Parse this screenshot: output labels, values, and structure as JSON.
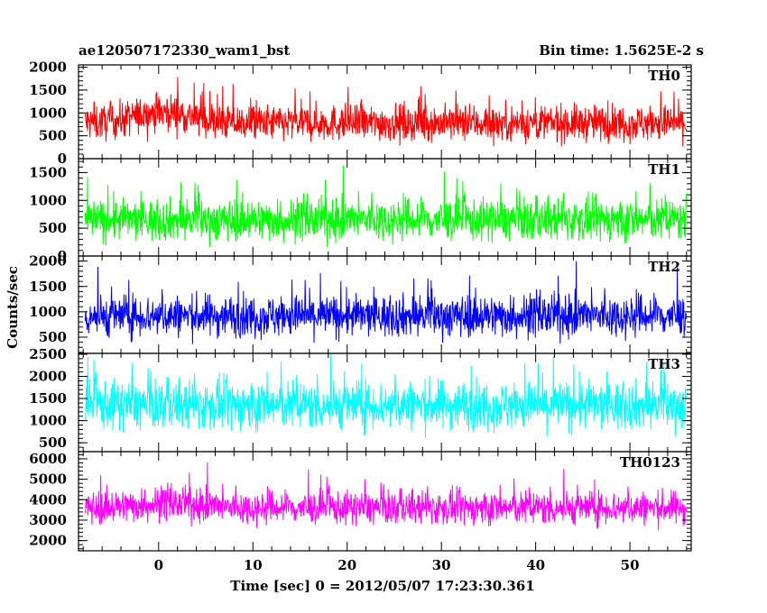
{
  "header": {
    "title": "ae120507172330_wam1_bst",
    "bin_time": "Bin time: 1.5625E-2 s"
  },
  "axes": {
    "ylabel": "Counts/sec",
    "xlabel": "Time [sec] 0 = 2012/05/07 17:23:30.361"
  },
  "chart_data": {
    "type": "line",
    "xlim": [
      -8.5,
      56.5
    ],
    "x_ticks": [
      0,
      10,
      20,
      30,
      40,
      50
    ],
    "x_tick_labels": [
      "0",
      "10",
      "20",
      "30",
      "40",
      "50"
    ],
    "x_data_range": [
      -7.8,
      56
    ],
    "bin_time": 0.015625,
    "panels": [
      {
        "name": "TH0",
        "color": "#ff0000",
        "ylim": [
          0,
          2050
        ],
        "y_ticks": [
          0,
          500,
          1000,
          1500,
          2000
        ],
        "y_tick_labels": [
          "0",
          "500",
          "1000",
          "1500",
          "2000"
        ],
        "baseline": 780,
        "spread": 320,
        "bursts": [
          {
            "x": 0.5,
            "amp": 250,
            "width": 4
          }
        ]
      },
      {
        "name": "TH1",
        "color": "#00ff00",
        "ylim": [
          0,
          1750
        ],
        "y_ticks": [
          0,
          500,
          1000,
          1500
        ],
        "y_tick_labels": [
          "0",
          "500",
          "1000",
          "1500"
        ],
        "baseline": 650,
        "spread": 300,
        "bursts": []
      },
      {
        "name": "TH2",
        "color": "#0000ff",
        "ylim": [
          180,
          2100
        ],
        "y_ticks": [
          500,
          1000,
          1500,
          2000
        ],
        "y_tick_labels": [
          "500",
          "1000",
          "1500",
          "2000"
        ],
        "baseline": 920,
        "spread": 330,
        "bursts": []
      },
      {
        "name": "TH3",
        "color": "#00ffff",
        "ylim": [
          300,
          2520
        ],
        "y_ticks": [
          500,
          1000,
          1500,
          2000,
          2500
        ],
        "y_tick_labels": [
          "500",
          "1000",
          "1500",
          "2000",
          "2500"
        ],
        "baseline": 1350,
        "spread": 440,
        "bursts": []
      },
      {
        "name": "TH0123",
        "color": "#ff00ff",
        "ylim": [
          1500,
          6350
        ],
        "y_ticks": [
          2000,
          3000,
          4000,
          5000,
          6000
        ],
        "y_tick_labels": [
          "2000",
          "3000",
          "4000",
          "5000",
          "6000"
        ],
        "baseline": 3600,
        "spread": 650,
        "bursts": [
          {
            "x": 1,
            "amp": 200,
            "width": 5
          }
        ]
      }
    ]
  }
}
